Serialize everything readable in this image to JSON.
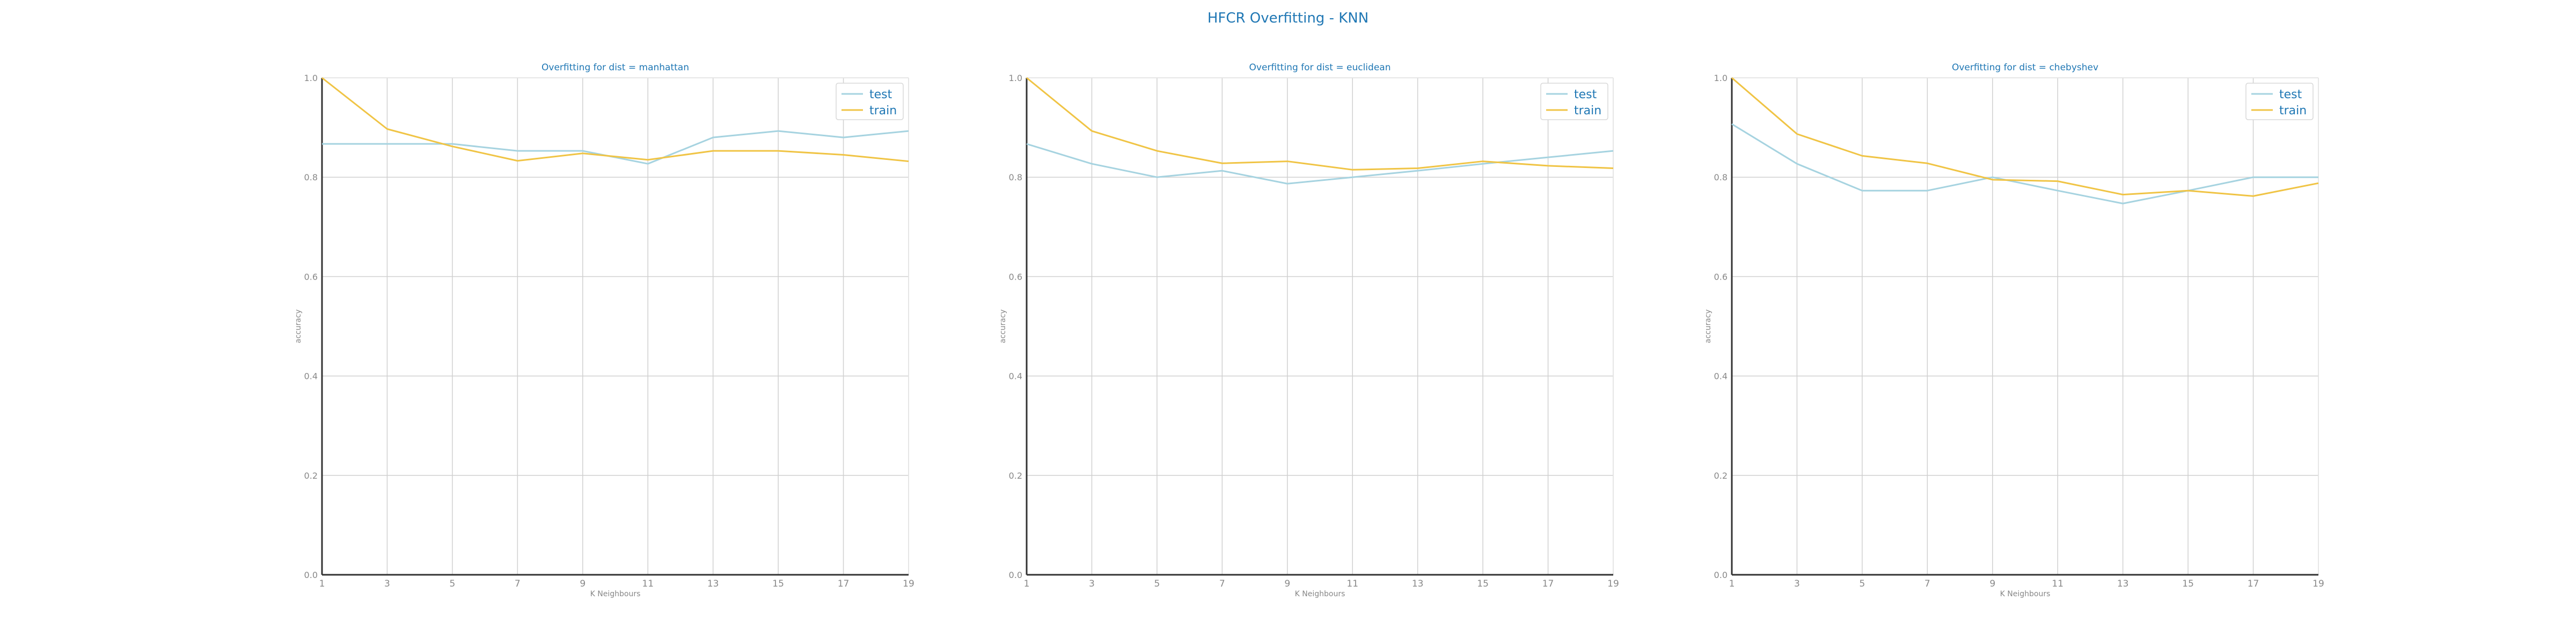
{
  "figure": {
    "title": "HFCR Overfitting - KNN"
  },
  "style": {
    "title_color": "#1f77b4",
    "test_color": "#a6d3e0",
    "train_color": "#f0c445",
    "grid_color": "#d0d0d0",
    "axis_color": "#333333",
    "tick_color": "#888888"
  },
  "chart_data": [
    {
      "type": "line",
      "title": "Overfitting for dist = manhattan",
      "xlabel": "K Neighbours",
      "ylabel": "accuracy",
      "x": [
        1,
        3,
        5,
        7,
        9,
        11,
        13,
        15,
        17,
        19
      ],
      "xticks": [
        "1",
        "3",
        "5",
        "7",
        "9",
        "11",
        "13",
        "15",
        "17",
        "19"
      ],
      "ylim": [
        0.0,
        1.0
      ],
      "yticks": [
        "0.0",
        "0.2",
        "0.4",
        "0.6",
        "0.8",
        "1.0"
      ],
      "grid": true,
      "legend_position": "top-right",
      "series": [
        {
          "name": "test",
          "values": [
            0.867,
            0.867,
            0.867,
            0.853,
            0.853,
            0.827,
            0.88,
            0.893,
            0.88,
            0.893
          ]
        },
        {
          "name": "train",
          "values": [
            1.0,
            0.897,
            0.862,
            0.833,
            0.848,
            0.835,
            0.853,
            0.853,
            0.845,
            0.832
          ]
        }
      ]
    },
    {
      "type": "line",
      "title": "Overfitting for dist = euclidean",
      "xlabel": "K Neighbours",
      "ylabel": "accuracy",
      "x": [
        1,
        3,
        5,
        7,
        9,
        11,
        13,
        15,
        17,
        19
      ],
      "xticks": [
        "1",
        "3",
        "5",
        "7",
        "9",
        "11",
        "13",
        "15",
        "17",
        "19"
      ],
      "ylim": [
        0.0,
        1.0
      ],
      "yticks": [
        "0.0",
        "0.2",
        "0.4",
        "0.6",
        "0.8",
        "1.0"
      ],
      "grid": true,
      "legend_position": "top-right",
      "series": [
        {
          "name": "test",
          "values": [
            0.867,
            0.827,
            0.8,
            0.813,
            0.787,
            0.8,
            0.813,
            0.827,
            0.84,
            0.853
          ]
        },
        {
          "name": "train",
          "values": [
            1.0,
            0.893,
            0.853,
            0.828,
            0.832,
            0.815,
            0.818,
            0.832,
            0.823,
            0.818
          ]
        }
      ]
    },
    {
      "type": "line",
      "title": "Overfitting for dist = chebyshev",
      "xlabel": "K Neighbours",
      "ylabel": "accuracy",
      "x": [
        1,
        3,
        5,
        7,
        9,
        11,
        13,
        15,
        17,
        19
      ],
      "xticks": [
        "1",
        "3",
        "5",
        "7",
        "9",
        "11",
        "13",
        "15",
        "17",
        "19"
      ],
      "ylim": [
        0.0,
        1.0
      ],
      "yticks": [
        "0.0",
        "0.2",
        "0.4",
        "0.6",
        "0.8",
        "1.0"
      ],
      "grid": true,
      "legend_position": "top-right",
      "series": [
        {
          "name": "test",
          "values": [
            0.907,
            0.827,
            0.773,
            0.773,
            0.8,
            0.773,
            0.747,
            0.773,
            0.8,
            0.8
          ]
        },
        {
          "name": "train",
          "values": [
            1.0,
            0.887,
            0.843,
            0.828,
            0.795,
            0.792,
            0.765,
            0.773,
            0.762,
            0.788
          ]
        }
      ]
    }
  ]
}
